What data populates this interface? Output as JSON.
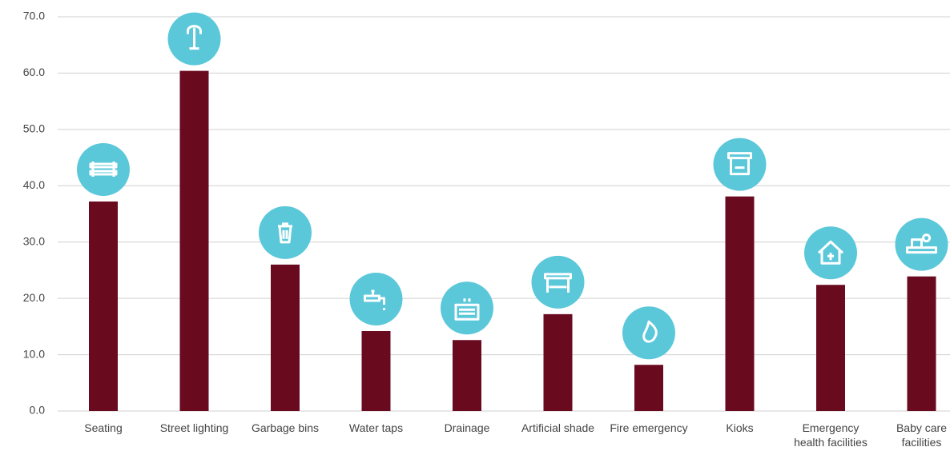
{
  "chart_data": {
    "type": "bar",
    "categories": [
      "Seating",
      "Street lighting",
      "Garbage bins",
      "Water taps",
      "Drainage",
      "Artificial shade",
      "Fire emergency",
      "Kioks",
      "Emergency\nhealth facilities",
      "Baby care\nfacilities"
    ],
    "values": [
      37.2,
      60.4,
      26.0,
      14.2,
      12.6,
      17.2,
      8.2,
      38.1,
      22.4,
      23.9
    ],
    "color": "#6a0a1f",
    "icon_color": "#5bc8da",
    "ylim": [
      0,
      70
    ],
    "yticks": [
      {
        "value": 0,
        "label": "0.0"
      },
      {
        "value": 10,
        "label": "10.0"
      },
      {
        "value": 20,
        "label": "20.0"
      },
      {
        "value": 30,
        "label": "30.0"
      },
      {
        "value": 40,
        "label": "40.0"
      },
      {
        "value": 50,
        "label": "50.0"
      },
      {
        "value": 60,
        "label": "60.0"
      },
      {
        "value": 70,
        "label": "70.0"
      }
    ],
    "grid": true
  }
}
